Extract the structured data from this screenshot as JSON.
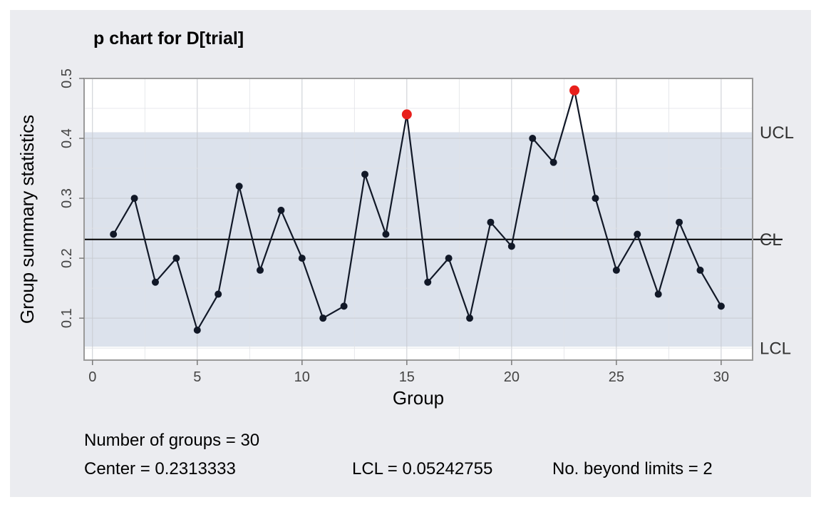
{
  "chart_data": {
    "type": "line",
    "title": "p chart for D[trial]",
    "xlabel": "Group",
    "ylabel": "Group summary statistics",
    "xlim": [
      -0.4,
      31.5
    ],
    "ylim": [
      0.03,
      0.5
    ],
    "xticks": [
      0,
      5,
      10,
      15,
      20,
      25,
      30
    ],
    "yticks": [
      0.1,
      0.2,
      0.3,
      0.4,
      0.5
    ],
    "grid": true,
    "x": [
      1,
      2,
      3,
      4,
      5,
      6,
      7,
      8,
      9,
      10,
      11,
      12,
      13,
      14,
      15,
      16,
      17,
      18,
      19,
      20,
      21,
      22,
      23,
      24,
      25,
      26,
      27,
      28,
      29,
      30
    ],
    "values": [
      0.24,
      0.3,
      0.16,
      0.2,
      0.08,
      0.14,
      0.32,
      0.18,
      0.28,
      0.2,
      0.1,
      0.12,
      0.34,
      0.24,
      0.44,
      0.16,
      0.2,
      0.1,
      0.26,
      0.22,
      0.4,
      0.36,
      0.48,
      0.3,
      0.18,
      0.24,
      0.14,
      0.26,
      0.18,
      0.12
    ],
    "center": 0.2313333,
    "ucl": 0.4102391,
    "lcl": 0.05242755,
    "limit_labels": {
      "ucl": "UCL",
      "cl": "CL",
      "lcl": "LCL"
    },
    "colors": {
      "line": "#111827",
      "point": "#111827",
      "violation": "#e8201c",
      "band": "#dce2ec",
      "panel": "#ebecf0",
      "plot_bg": "#ffffff"
    }
  },
  "stats": {
    "groups": "Number of groups = 30",
    "center": "Center = 0.2313333",
    "lcl": "LCL = 0.05242755",
    "beyond": "No. beyond limits = 2"
  }
}
